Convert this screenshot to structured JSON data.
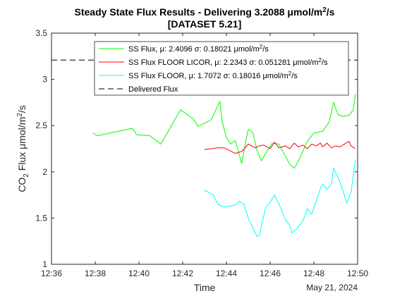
{
  "chart_data": {
    "type": "line",
    "title_main": "Steady State Flux Results - Delivering 3.2088 μmol/m",
    "title_sup": "2",
    "title_tail": "/s",
    "title_line2": "[DATASET 5.21]",
    "xlabel": "Time",
    "date_label": "May 21, 2024",
    "ylabel_main": "CO",
    "ylabel_sub": "2",
    "ylabel_mid": " Flux μmol/m",
    "ylabel_sup": "2",
    "ylabel_tail": "/s",
    "x_range": [
      "12:36",
      "12:50"
    ],
    "ylim": [
      1,
      3.5
    ],
    "x_ticks": [
      "12:36",
      "12:38",
      "12:40",
      "12:42",
      "12:44",
      "12:46",
      "12:48",
      "12:50"
    ],
    "y_ticks": [
      "1",
      "1.5",
      "2",
      "2.5",
      "3",
      "3.5"
    ],
    "legend_position": "top-right",
    "series": [
      {
        "name": "SS Flux, μ: 2.4096 σ: 0.18021 μmol/m",
        "name_sup": "2",
        "name_tail": "/s",
        "color": "#00ff00",
        "style": "solid",
        "points": [
          [
            "12:37:54",
            2.42
          ],
          [
            "12:38:06",
            2.39
          ],
          [
            "12:39:42",
            2.47
          ],
          [
            "12:39:54",
            2.4
          ],
          [
            "12:40:30",
            2.39
          ],
          [
            "12:41:00",
            2.3
          ],
          [
            "12:41:54",
            2.67
          ],
          [
            "12:42:30",
            2.57
          ],
          [
            "12:42:42",
            2.49
          ],
          [
            "12:43:18",
            2.56
          ],
          [
            "12:43:42",
            2.76
          ],
          [
            "12:43:48",
            2.55
          ],
          [
            "12:44:00",
            2.37
          ],
          [
            "12:44:12",
            2.3
          ],
          [
            "12:44:24",
            2.34
          ],
          [
            "12:44:42",
            2.09
          ],
          [
            "12:44:54",
            2.35
          ],
          [
            "12:45:00",
            2.46
          ],
          [
            "12:45:12",
            2.43
          ],
          [
            "12:45:24",
            2.23
          ],
          [
            "12:45:36",
            2.12
          ],
          [
            "12:45:54",
            2.24
          ],
          [
            "12:46:06",
            2.31
          ],
          [
            "12:46:24",
            2.3
          ],
          [
            "12:46:54",
            2.08
          ],
          [
            "12:47:06",
            2.04
          ],
          [
            "12:47:18",
            2.12
          ],
          [
            "12:47:42",
            2.33
          ],
          [
            "12:48:00",
            2.42
          ],
          [
            "12:48:24",
            2.44
          ],
          [
            "12:48:42",
            2.54
          ],
          [
            "12:48:54",
            2.75
          ],
          [
            "12:49:06",
            2.62
          ],
          [
            "12:49:18",
            2.6
          ],
          [
            "12:49:36",
            2.61
          ],
          [
            "12:49:48",
            2.67
          ],
          [
            "12:49:54",
            2.84
          ]
        ]
      },
      {
        "name": "SS Flux FLOOR LICOR, μ: 2.2343 σ: 0.051281 μmol/m",
        "name_sup": "2",
        "name_tail": "/s",
        "color": "#ff0000",
        "style": "solid",
        "points": [
          [
            "12:43:00",
            2.24
          ],
          [
            "12:43:36",
            2.26
          ],
          [
            "12:43:54",
            2.26
          ],
          [
            "12:44:24",
            2.2
          ],
          [
            "12:44:42",
            2.22
          ],
          [
            "12:45:00",
            2.3
          ],
          [
            "12:45:18",
            2.26
          ],
          [
            "12:45:30",
            2.28
          ],
          [
            "12:45:42",
            2.29
          ],
          [
            "12:46:00",
            2.25
          ],
          [
            "12:46:12",
            2.32
          ],
          [
            "12:46:24",
            2.26
          ],
          [
            "12:46:42",
            2.28
          ],
          [
            "12:46:54",
            2.25
          ],
          [
            "12:47:06",
            2.31
          ],
          [
            "12:47:18",
            2.27
          ],
          [
            "12:47:30",
            2.29
          ],
          [
            "12:47:42",
            2.25
          ],
          [
            "12:47:54",
            2.3
          ],
          [
            "12:48:06",
            2.28
          ],
          [
            "12:48:18",
            2.31
          ],
          [
            "12:48:24",
            2.27
          ],
          [
            "12:48:36",
            2.31
          ],
          [
            "12:48:48",
            2.26
          ],
          [
            "12:49:00",
            2.28
          ],
          [
            "12:49:12",
            2.27
          ],
          [
            "12:49:24",
            2.3
          ],
          [
            "12:49:36",
            2.33
          ],
          [
            "12:49:42",
            2.28
          ],
          [
            "12:49:54",
            2.25
          ]
        ]
      },
      {
        "name": "SS Flux FLOOR, μ: 1.7072 σ: 0.18016 μmol/m",
        "name_sup": "2",
        "name_tail": "/s",
        "color": "#00ffff",
        "style": "solid",
        "points": [
          [
            "12:43:00",
            1.8
          ],
          [
            "12:43:24",
            1.75
          ],
          [
            "12:43:36",
            1.65
          ],
          [
            "12:43:54",
            1.62
          ],
          [
            "12:44:24",
            1.64
          ],
          [
            "12:44:36",
            1.68
          ],
          [
            "12:44:48",
            1.65
          ],
          [
            "12:45:00",
            1.5
          ],
          [
            "12:45:12",
            1.4
          ],
          [
            "12:45:24",
            1.3
          ],
          [
            "12:45:30",
            1.31
          ],
          [
            "12:45:48",
            1.62
          ],
          [
            "12:46:00",
            1.67
          ],
          [
            "12:46:12",
            1.75
          ],
          [
            "12:46:30",
            1.6
          ],
          [
            "12:46:42",
            1.48
          ],
          [
            "12:46:54",
            1.42
          ],
          [
            "12:47:00",
            1.34
          ],
          [
            "12:47:12",
            1.38
          ],
          [
            "12:47:30",
            1.47
          ],
          [
            "12:47:42",
            1.6
          ],
          [
            "12:47:54",
            1.54
          ],
          [
            "12:48:06",
            1.68
          ],
          [
            "12:48:18",
            1.82
          ],
          [
            "12:48:24",
            1.87
          ],
          [
            "12:48:36",
            1.81
          ],
          [
            "12:48:48",
            1.87
          ],
          [
            "12:48:54",
            2.04
          ],
          [
            "12:49:06",
            1.94
          ],
          [
            "12:49:18",
            1.82
          ],
          [
            "12:49:30",
            1.66
          ],
          [
            "12:49:42",
            1.78
          ],
          [
            "12:49:54",
            2.13
          ]
        ]
      },
      {
        "name": "Delivered Flux",
        "color": "#000000",
        "style": "dashed",
        "points": [
          [
            "12:36:00",
            3.2088
          ],
          [
            "12:50:00",
            3.2088
          ]
        ]
      }
    ]
  }
}
